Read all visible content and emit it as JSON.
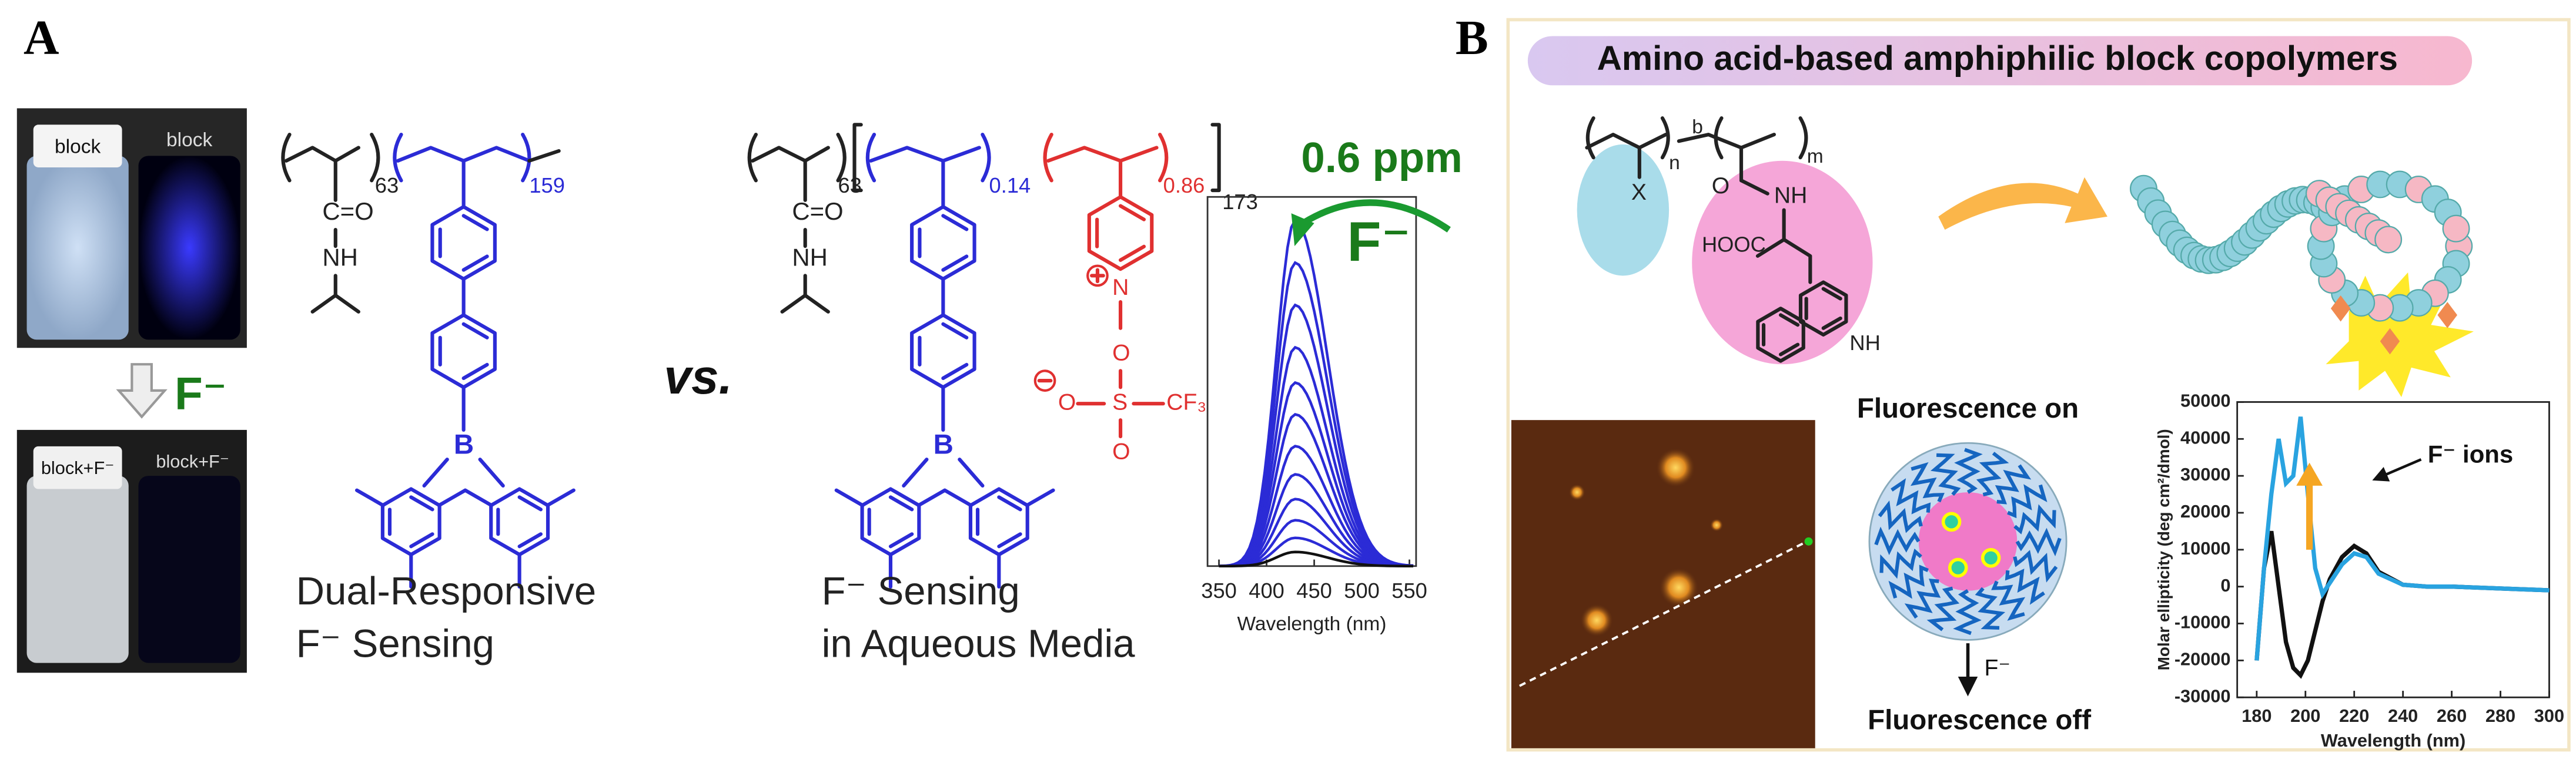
{
  "panel_a": {
    "label": "A",
    "photos": {
      "top_left": "block",
      "top_right": "block",
      "arrow_label": "F⁻",
      "bottom_left": "block+F⁻",
      "bottom_right": "block+F⁻"
    },
    "polymer_1": {
      "subscripts": [
        "63",
        "159"
      ],
      "groups": [
        "C=O",
        "NH",
        "B"
      ],
      "caption": [
        "Dual-Responsive",
        "F⁻ Sensing"
      ]
    },
    "versus": "vs.",
    "polymer_2": {
      "subscripts": [
        "63",
        "0.14",
        "0.86",
        "173"
      ],
      "groups": [
        "C=O",
        "NH",
        "B",
        "N",
        "O",
        "S",
        "CF₃",
        "O",
        "O"
      ],
      "caption": [
        "F⁻ Sensing",
        "in Aqueous Media"
      ]
    },
    "spectrum": {
      "type": "line",
      "xlabel": "Wavelength (nm)",
      "xlim": [
        338,
        557
      ],
      "xticks": [
        350,
        400,
        450,
        500,
        550
      ],
      "annotation": "0.6 ppm",
      "analyte": "F⁻"
    }
  },
  "panel_b": {
    "label": "B",
    "title": "Amino acid-based amphiphilic block copolymers",
    "structure": {
      "labels": [
        "X",
        "n",
        "b",
        "m",
        "O",
        "NH",
        "HOOC",
        "NH"
      ]
    },
    "micelle": {
      "top": "Fluorescence on",
      "analyte": "F⁻",
      "bottom": "Fluorescence off"
    },
    "cd_chart": {
      "type": "line",
      "xlabel": "Wavelength (nm)",
      "ylabel": "Molar ellipticity (deg cm²/dmol)",
      "annotation": "F⁻ ions",
      "xlim": [
        172,
        300
      ],
      "ylim": [
        -30000,
        50000
      ],
      "xticks": [
        180,
        200,
        220,
        240,
        260,
        280,
        300
      ],
      "yticks": [
        -30000,
        -20000,
        -10000,
        0,
        10000,
        20000,
        30000,
        40000,
        50000
      ],
      "x": [
        180,
        183,
        186,
        189,
        192,
        195,
        198,
        201,
        204,
        207,
        210,
        215,
        220,
        225,
        230,
        240,
        250,
        260,
        280,
        300
      ],
      "series": [
        {
          "color": "#111111",
          "values": [
            -20000,
            5000,
            15000,
            0,
            -15000,
            -22000,
            -24000,
            -20000,
            -12000,
            -4000,
            2000,
            8000,
            11000,
            9000,
            4000,
            500,
            0,
            0,
            -500,
            -1000
          ]
        },
        {
          "color": "#29a3e0",
          "values": [
            -20000,
            5000,
            25000,
            40000,
            28000,
            30000,
            46000,
            25000,
            5000,
            -2000,
            1000,
            6000,
            9000,
            8000,
            3500,
            500,
            0,
            0,
            -500,
            -1000
          ]
        }
      ]
    }
  }
}
